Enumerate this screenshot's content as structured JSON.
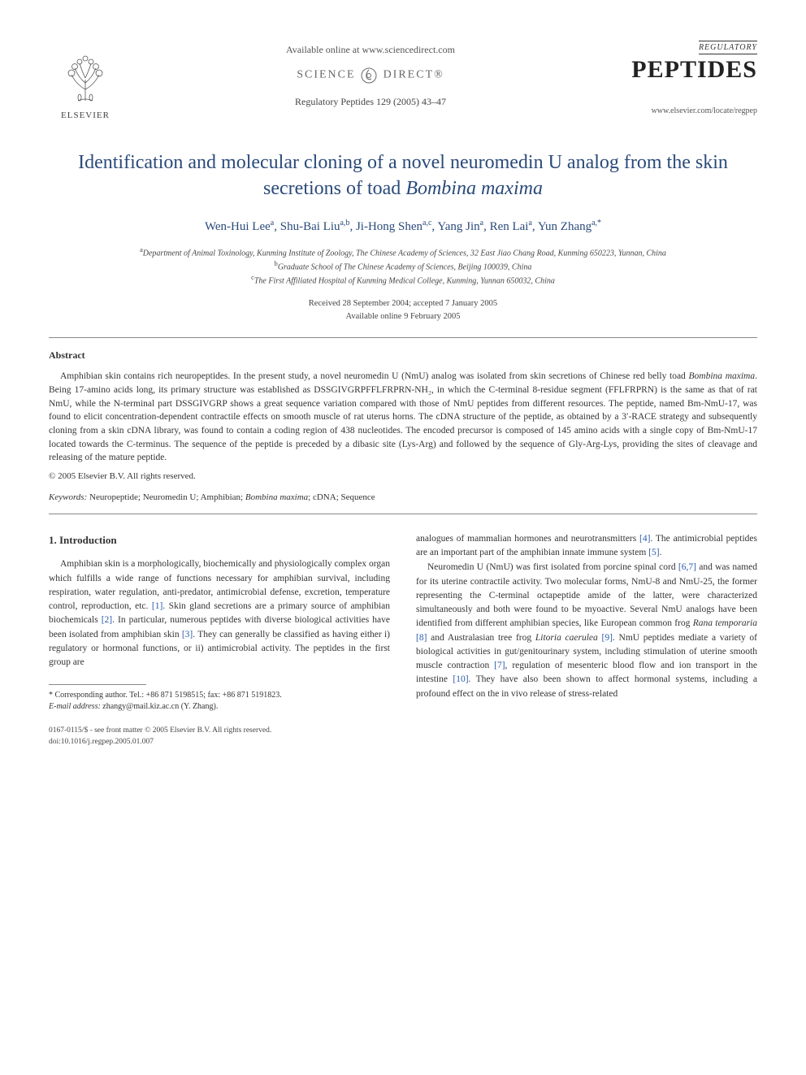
{
  "header": {
    "elsevier": "ELSEVIER",
    "available": "Available online at www.sciencedirect.com",
    "sd_left": "SCIENCE",
    "sd_right": "DIRECT®",
    "journal_ref": "Regulatory Peptides 129 (2005) 43–47",
    "journal_reg": "REGULATORY",
    "journal_big": "PEPTIDES",
    "journal_url": "www.elsevier.com/locate/regpep"
  },
  "title_a": "Identification and molecular cloning of a novel neuromedin U analog from the skin secretions of toad ",
  "title_species": "Bombina maxima",
  "authors_html": "Wen-Hui Lee<sup>a</sup>, Shu-Bai Liu<sup>a,b</sup>, Ji-Hong Shen<sup>a,c</sup>, Yang Jin<sup>a</sup>, Ren Lai<sup>a</sup>, Yun Zhang<sup>a,*</sup>",
  "affiliations": {
    "a": "Department of Animal Toxinology, Kunming Institute of Zoology, The Chinese Academy of Sciences, 32 East Jiao Chang Road, Kunming 650223, Yunnan, China",
    "b": "Graduate School of The Chinese Academy of Sciences, Beijing 100039, China",
    "c": "The First Affiliated Hospital of Kunming Medical College, Kunming, Yunnan 650032, China"
  },
  "dates": {
    "received": "Received 28 September 2004; accepted 7 January 2005",
    "online": "Available online 9 February 2005"
  },
  "abstract": {
    "heading": "Abstract",
    "body": "Amphibian skin contains rich neuropeptides. In the present study, a novel neuromedin U (NmU) analog was isolated from skin secretions of Chinese red belly toad Bombina maxima. Being 17-amino acids long, its primary structure was established as DSSGIVGRPFFLFRPRN-NH₂, in which the C-terminal 8-residue segment (FFLFRPRN) is the same as that of rat NmU, while the N-terminal part DSSGIVGRP shows a great sequence variation compared with those of NmU peptides from different resources. The peptide, named Bm-NmU-17, was found to elicit concentration-dependent contractile effects on smooth muscle of rat uterus horns. The cDNA structure of the peptide, as obtained by a 3′-RACE strategy and subsequently cloning from a skin cDNA library, was found to contain a coding region of 438 nucleotides. The encoded precursor is composed of 145 amino acids with a single copy of Bm-NmU-17 located towards the C-terminus. The sequence of the peptide is preceded by a dibasic site (Lys-Arg) and followed by the sequence of Gly-Arg-Lys, providing the sites of cleavage and releasing of the mature peptide.",
    "copyright": "© 2005 Elsevier B.V. All rights reserved."
  },
  "keywords": {
    "label": "Keywords:",
    "text": " Neuropeptide; Neuromedin U; Amphibian; Bombina maxima; cDNA; Sequence"
  },
  "intro_heading": "1. Introduction",
  "intro": {
    "p1a": "Amphibian skin is a morphologically, biochemically and physiologically complex organ which fulfills a wide range of functions necessary for amphibian survival, including respiration, water regulation, anti-predator, antimicrobial defense, excretion, temperature control, reproduction, etc. ",
    "r1": "[1]",
    "p1b": ". Skin gland secretions are a primary source of amphibian biochemicals ",
    "r2": "[2]",
    "p1c": ". In particular, numerous peptides with diverse biological activities have been isolated from amphibian skin ",
    "r3": "[3]",
    "p1d": ". They can generally be classified as having either i) regulatory or hormonal functions, or ii) antimicrobial activity. The peptides in the first group are",
    "p2a": "analogues of mammalian hormones and neurotransmitters ",
    "r4": "[4]",
    "p2b": ". The antimicrobial peptides are an important part of the amphibian innate immune system ",
    "r5": "[5]",
    "p2c": ".",
    "p3a": "Neuromedin U (NmU) was first isolated from porcine spinal cord ",
    "r67": "[6,7]",
    "p3b": " and was named for its uterine contractile activity. Two molecular forms, NmU-8 and NmU-25, the former representing the C-terminal octapeptide amide of the latter, were characterized simultaneously and both were found to be myoactive. Several NmU analogs have been identified from different amphibian species, like European common frog ",
    "sp_rana": "Rana temporaria",
    "r8": " [8]",
    "p3c": " and Australasian tree frog ",
    "sp_litoria": "Litoria caerulea",
    "r9": " [9]",
    "p3d": ". NmU peptides mediate a variety of biological activities in gut/genitourinary system, including stimulation of uterine smooth muscle contraction ",
    "r7": "[7]",
    "p3e": ", regulation of mesenteric blood flow and ion transport in the intestine ",
    "r10": "[10]",
    "p3f": ". They have also been shown to affect hormonal systems, including a profound effect on the in vivo release of stress-related"
  },
  "footnote": {
    "corr": "* Corresponding author. Tel.: +86 871 5198515; fax: +86 871 5191823.",
    "email_label": "E-mail address:",
    "email": " zhangy@mail.kiz.ac.cn (Y. Zhang)."
  },
  "bottom": {
    "line1": "0167-0115/$ - see front matter © 2005 Elsevier B.V. All rights reserved.",
    "line2": "doi:10.1016/j.regpep.2005.01.007"
  },
  "colors": {
    "title": "#2a4a7a",
    "link": "#2a5aaa",
    "text": "#333333"
  }
}
